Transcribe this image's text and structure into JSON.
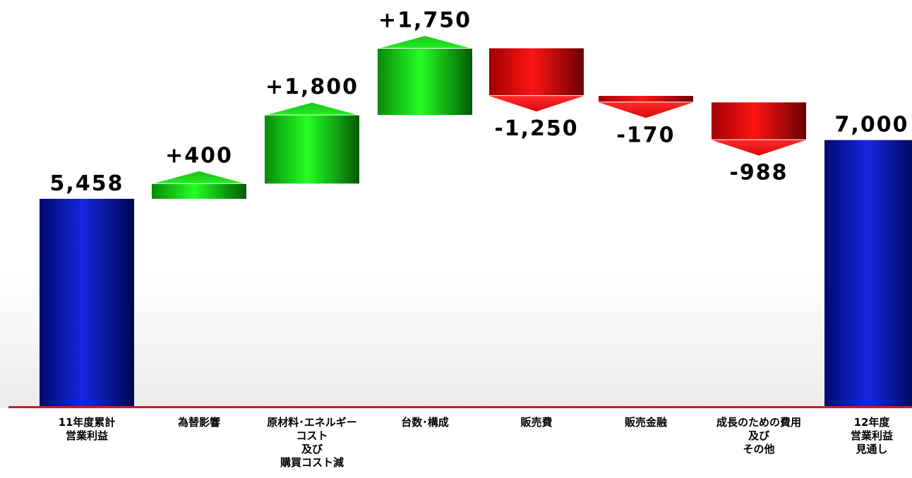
{
  "chart_data": {
    "type": "waterfall",
    "categories": [
      "11年度累計\n営業利益",
      "為替影響",
      "原材料･エネルギー\nコスト\n及び\n購買コスト減",
      "台数･構成",
      "販売費",
      "販売金融",
      "成長のための費用\n及び\nその他",
      "12年度\n営業利益\n見通し"
    ],
    "values": [
      5458,
      400,
      1800,
      1750,
      -1250,
      -170,
      -988,
      7000
    ],
    "kinds": [
      "total",
      "increase",
      "increase",
      "increase",
      "decrease",
      "decrease",
      "decrease",
      "total"
    ],
    "data_labels": [
      "5,458",
      "+400",
      "+1,800",
      "+1,750",
      "-1,250",
      "-170",
      "-988",
      "7,000"
    ],
    "colors": {
      "total": "#0a1aa8",
      "increase": "#16d616",
      "decrease": "#e81010",
      "baseline": "#cc1f1f"
    },
    "ylim": [
      0,
      11000
    ],
    "grid": false,
    "legend": "none",
    "title": "",
    "xlabel": "",
    "ylabel": ""
  }
}
